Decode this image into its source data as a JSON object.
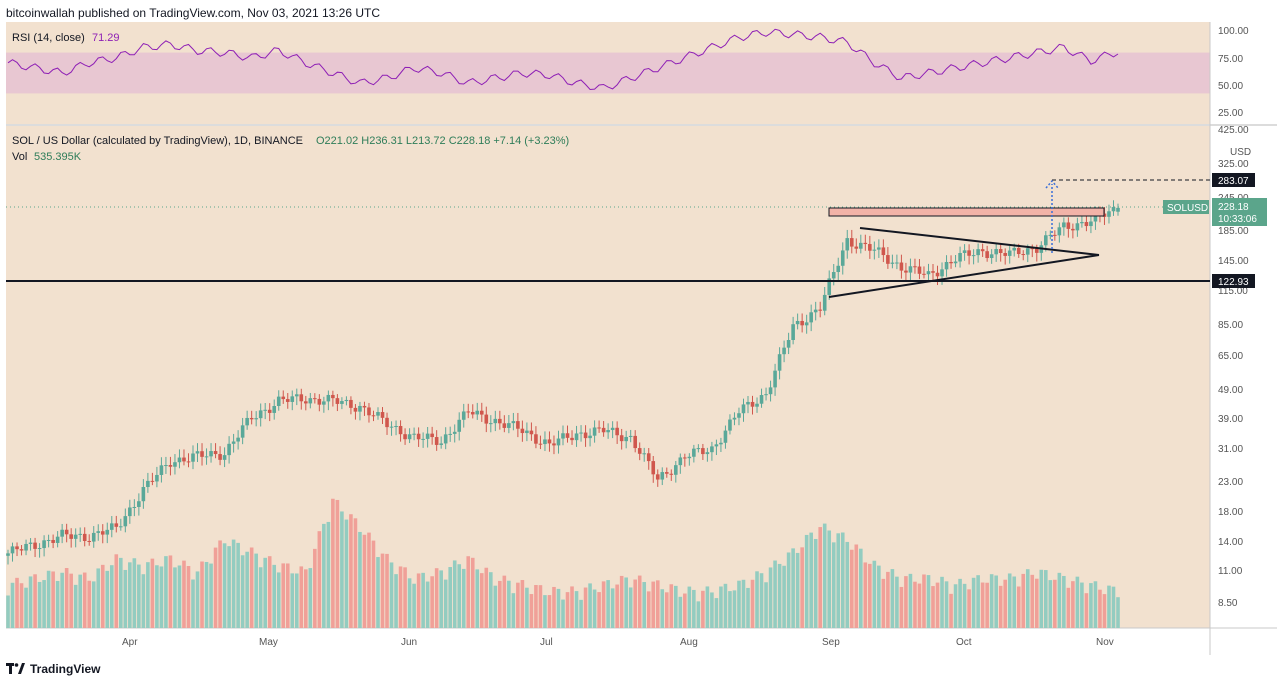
{
  "header": {
    "published": "bitcoinwallah published on TradingView.com, Nov 03, 2021 13:26 UTC"
  },
  "footer": {
    "brand": "TradingView"
  },
  "colors": {
    "background": "#f2e1cf",
    "up": "#5aa899",
    "down": "#d0574d",
    "vol_up": "#93ccc0",
    "vol_down": "#f0a098",
    "rsi_line": "#8e1fb5",
    "rsi_band": "#e8c7d2",
    "resistance": "#f2b3a8",
    "price_label": "#5ba58b"
  },
  "rsi_panel": {
    "title": "RSI (14, close)",
    "value": "71.29",
    "ticks": [
      "100.00",
      "75.00",
      "50.00",
      "25.00"
    ],
    "band": [
      30,
      70
    ]
  },
  "price_panel": {
    "symbol_info": "SOL / US Dollar (calculated by TradingView), 1D, BINANCE",
    "ohlc": "O221.02  H236.31  L213.72  C228.18  +7.14 (+3.23%)",
    "vol_label": "Vol",
    "vol_value": "535.395K",
    "currency": "USD",
    "y_ticks": [
      "425.00",
      "325.00",
      "245.00",
      "185.00",
      "145.00",
      "115.00",
      "85.00",
      "65.00",
      "49.00",
      "39.00",
      "31.00",
      "23.00",
      "18.00",
      "14.00",
      "11.00",
      "8.50"
    ],
    "x_ticks": [
      "Apr",
      "May",
      "Jun",
      "Jul",
      "Aug",
      "Sep",
      "Oct",
      "Nov"
    ],
    "labels": {
      "target": "283.07",
      "symbol_tag": "SOLUSD",
      "last_price": "228.18",
      "countdown": "10:33:06",
      "support": "122.93"
    }
  },
  "chart_data": {
    "type": "candlestick",
    "title": "SOL / US Dollar (calculated by TradingView), 1D, BINANCE",
    "y_scale": "log",
    "x_range": [
      "2021-03-07",
      "2021-11-03"
    ],
    "y_range": [
      7,
      450
    ],
    "weekly_close": [
      13,
      14,
      15,
      15,
      16,
      22,
      28,
      29,
      30,
      40,
      46,
      47,
      46,
      44,
      38,
      34,
      33,
      42,
      39,
      36,
      32,
      35,
      36,
      34,
      24,
      29,
      31,
      42,
      49,
      85,
      100,
      175,
      160,
      140,
      130,
      150,
      160,
      155,
      165,
      195,
      205,
      228
    ],
    "volume_relative": [
      0.25,
      0.3,
      0.35,
      0.3,
      0.45,
      0.4,
      0.45,
      0.35,
      0.6,
      0.5,
      0.4,
      0.35,
      0.9,
      0.7,
      0.45,
      0.3,
      0.35,
      0.45,
      0.3,
      0.25,
      0.2,
      0.2,
      0.25,
      0.3,
      0.25,
      0.2,
      0.2,
      0.25,
      0.35,
      0.5,
      0.7,
      0.6,
      0.4,
      0.3,
      0.3,
      0.25,
      0.3,
      0.3,
      0.35,
      0.3,
      0.25,
      0.2
    ],
    "rsi": [
      60,
      55,
      50,
      60,
      65,
      75,
      78,
      72,
      70,
      65,
      72,
      60,
      50,
      40,
      45,
      55,
      50,
      40,
      45,
      50,
      48,
      40,
      35,
      45,
      55,
      65,
      75,
      85,
      90,
      88,
      85,
      80,
      60,
      45,
      50,
      55,
      60,
      65,
      70,
      75,
      62,
      71
    ],
    "levels": {
      "resistance": 228,
      "support": 122.93,
      "target": 283.07
    },
    "last": {
      "open": 221.02,
      "high": 236.31,
      "low": 213.72,
      "close": 228.18,
      "change": 7.14,
      "change_pct": 3.23
    }
  }
}
